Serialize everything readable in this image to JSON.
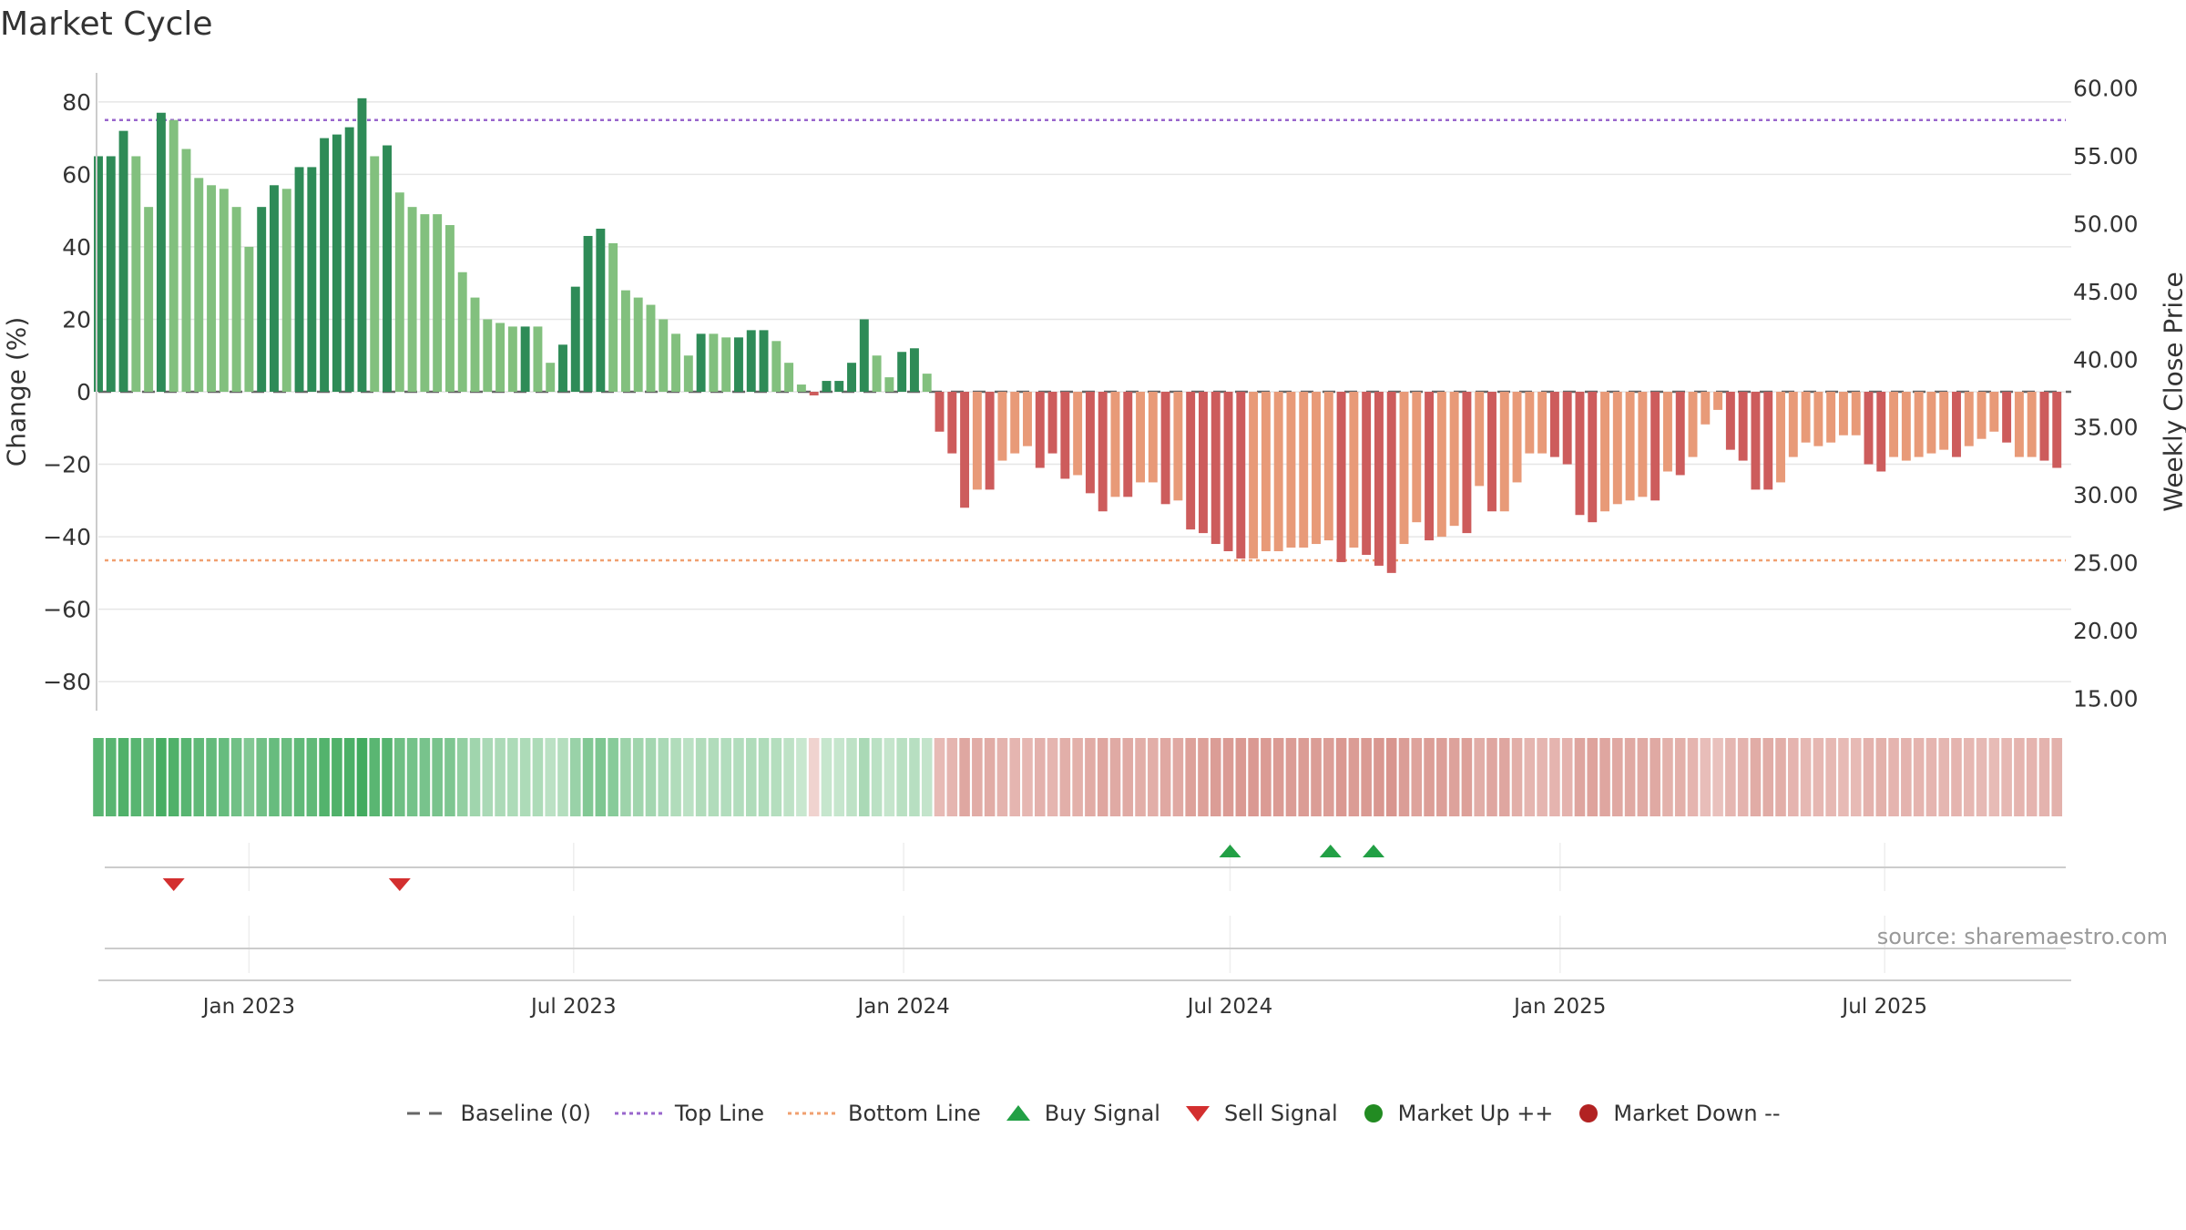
{
  "page": {
    "title": "Market Cycle",
    "source": "source: sharemaestro.com"
  },
  "legend": [
    {
      "key": "baseline",
      "label": "Baseline (0)",
      "color": "#666666",
      "icon": "dash-line-icon"
    },
    {
      "key": "top",
      "label": "Top Line",
      "color": "#9966cc",
      "icon": "dotted-line-icon"
    },
    {
      "key": "bottom",
      "label": "Bottom Line",
      "color": "#f0a070",
      "icon": "dotted-line-icon"
    },
    {
      "key": "buy",
      "label": "Buy Signal",
      "color": "#22a045",
      "icon": "triangle-up-icon"
    },
    {
      "key": "sell",
      "label": "Sell Signal",
      "color": "#d32f2f",
      "icon": "triangle-down-icon"
    },
    {
      "key": "up",
      "label": "Market Up ++",
      "color": "#228b22",
      "icon": "circle-icon"
    },
    {
      "key": "down",
      "label": "Market Down --",
      "color": "#b22222",
      "icon": "circle-icon"
    }
  ],
  "chart_data": {
    "type": "bar",
    "ylabel": "Change (%)",
    "ylabel_right": "Weekly Close Price",
    "ylim": [
      -88,
      88
    ],
    "yticks": [
      80,
      60,
      40,
      20,
      0,
      -20,
      -40,
      -60,
      -80
    ],
    "ylim_right": [
      14.1,
      61.1
    ],
    "yticks_right": [
      "60.00",
      "55.00",
      "50.00",
      "45.00",
      "40.00",
      "35.00",
      "30.00",
      "25.00",
      "20.00",
      "15.00"
    ],
    "top_line": 75,
    "bottom_line": -46.5,
    "baseline": 0,
    "x_start": "2022-10-09",
    "x_end": "2025-10-13",
    "week_start": "2022-10-09",
    "x_ticks": [
      {
        "date": "2023-01-01",
        "label": "Jan 2023"
      },
      {
        "date": "2023-07-01",
        "label": "Jul 2023"
      },
      {
        "date": "2024-01-01",
        "label": "Jan 2024"
      },
      {
        "date": "2024-07-01",
        "label": "Jul 2024"
      },
      {
        "date": "2025-01-01",
        "label": "Jan 2025"
      },
      {
        "date": "2025-07-01",
        "label": "Jul 2025"
      }
    ],
    "colors": {
      "pos_strong": "#2e8b57",
      "pos_weak": "#82c07e",
      "neg_strong": "#cd5c5c",
      "neg_weak": "#e89a78",
      "top_line": "#9966cc",
      "bottom_line": "#f0a070",
      "baseline": "#666666",
      "buy": "#22a045",
      "sell": "#d32f2f"
    },
    "values": [
      65,
      65,
      72,
      65,
      51,
      77,
      75,
      67,
      59,
      57,
      56,
      51,
      40,
      51,
      57,
      56,
      62,
      62,
      70,
      71,
      73,
      81,
      65,
      68,
      55,
      51,
      49,
      49,
      46,
      33,
      26,
      20,
      19,
      18,
      18,
      18,
      8,
      13,
      29,
      43,
      45,
      41,
      28,
      26,
      24,
      20,
      16,
      10,
      16,
      16,
      15,
      15,
      17,
      17,
      14,
      8,
      2,
      -1,
      3,
      3,
      8,
      20,
      10,
      4,
      11,
      12,
      5,
      -11,
      -17,
      -32,
      -27,
      -27,
      -19,
      -17,
      -15,
      -21,
      -17,
      -24,
      -23,
      -28,
      -33,
      -29,
      -29,
      -25,
      -25,
      -31,
      -30,
      -38,
      -39,
      -42,
      -44,
      -46,
      -46,
      -44,
      -44,
      -43,
      -43,
      -42,
      -41,
      -47,
      -43,
      -45,
      -48,
      -50,
      -42,
      -36,
      -41,
      -40,
      -37,
      -39,
      -26,
      -33,
      -33,
      -25,
      -17,
      -17,
      -18,
      -20,
      -34,
      -36,
      -33,
      -31,
      -30,
      -29,
      -30,
      -22,
      -23,
      -18,
      -9,
      -5,
      -16,
      -19,
      -27,
      -27,
      -25,
      -18,
      -14,
      -15,
      -14,
      -12,
      -12,
      -20,
      -22,
      -18,
      -19,
      -18,
      -17,
      -16,
      -18,
      -15,
      -13,
      -11,
      -14,
      -18,
      -18,
      -19,
      -21
    ],
    "strong": [
      1,
      1,
      1,
      0,
      0,
      1,
      0,
      0,
      0,
      0,
      0,
      0,
      0,
      1,
      1,
      0,
      1,
      1,
      1,
      1,
      1,
      1,
      0,
      1,
      0,
      0,
      0,
      0,
      0,
      0,
      0,
      0,
      0,
      0,
      1,
      0,
      0,
      1,
      1,
      1,
      1,
      0,
      0,
      0,
      0,
      0,
      0,
      0,
      1,
      0,
      0,
      1,
      1,
      1,
      0,
      0,
      0,
      1,
      1,
      1,
      1,
      1,
      0,
      0,
      1,
      1,
      0,
      1,
      1,
      1,
      0,
      1,
      0,
      0,
      0,
      1,
      1,
      1,
      0,
      1,
      1,
      0,
      1,
      0,
      0,
      1,
      0,
      1,
      1,
      1,
      1,
      1,
      0,
      0,
      0,
      0,
      0,
      0,
      0,
      1,
      0,
      1,
      1,
      1,
      0,
      0,
      1,
      0,
      0,
      1,
      0,
      1,
      0,
      0,
      0,
      0,
      1,
      1,
      1,
      1,
      0,
      0,
      0,
      0,
      1,
      0,
      1,
      0,
      0,
      0,
      1,
      1,
      1,
      1,
      0,
      0,
      0,
      0,
      0,
      0,
      0,
      1,
      1,
      0,
      0,
      0,
      0,
      0,
      1,
      0,
      0,
      0,
      1,
      0,
      0,
      1,
      1
    ],
    "heat_strength": [
      0.85,
      0.85,
      0.9,
      0.85,
      0.75,
      0.95,
      0.9,
      0.85,
      0.8,
      0.78,
      0.76,
      0.7,
      0.6,
      0.7,
      0.76,
      0.74,
      0.8,
      0.8,
      0.88,
      0.9,
      0.92,
      0.98,
      0.84,
      0.86,
      0.72,
      0.68,
      0.66,
      0.66,
      0.62,
      0.5,
      0.42,
      0.36,
      0.35,
      0.34,
      0.34,
      0.34,
      0.26,
      0.3,
      0.46,
      0.6,
      0.62,
      0.56,
      0.44,
      0.42,
      0.4,
      0.36,
      0.32,
      0.26,
      0.32,
      0.32,
      0.31,
      0.31,
      0.33,
      0.33,
      0.3,
      0.24,
      0.18,
      0.15,
      0.19,
      0.19,
      0.24,
      0.36,
      0.26,
      0.2,
      0.27,
      0.28,
      0.21,
      0.4,
      0.45,
      0.6,
      0.55,
      0.55,
      0.47,
      0.45,
      0.43,
      0.49,
      0.45,
      0.52,
      0.51,
      0.56,
      0.61,
      0.57,
      0.57,
      0.53,
      0.53,
      0.59,
      0.58,
      0.66,
      0.67,
      0.7,
      0.72,
      0.74,
      0.74,
      0.72,
      0.72,
      0.71,
      0.71,
      0.7,
      0.69,
      0.75,
      0.71,
      0.73,
      0.76,
      0.78,
      0.7,
      0.64,
      0.69,
      0.68,
      0.65,
      0.67,
      0.54,
      0.61,
      0.61,
      0.53,
      0.45,
      0.45,
      0.46,
      0.48,
      0.62,
      0.64,
      0.61,
      0.59,
      0.58,
      0.57,
      0.58,
      0.5,
      0.51,
      0.46,
      0.37,
      0.33,
      0.44,
      0.47,
      0.55,
      0.55,
      0.53,
      0.46,
      0.42,
      0.43,
      0.42,
      0.4,
      0.4,
      0.48,
      0.5,
      0.46,
      0.47,
      0.46,
      0.45,
      0.44,
      0.46,
      0.43,
      0.41,
      0.39,
      0.42,
      0.46,
      0.46,
      0.47,
      0.49
    ],
    "buy_signals": [
      "2024-07-01",
      "2024-08-26",
      "2024-09-19"
    ],
    "sell_signals": [
      "2022-11-20",
      "2023-03-26"
    ],
    "market_up_signals": [],
    "market_down_signals": []
  }
}
